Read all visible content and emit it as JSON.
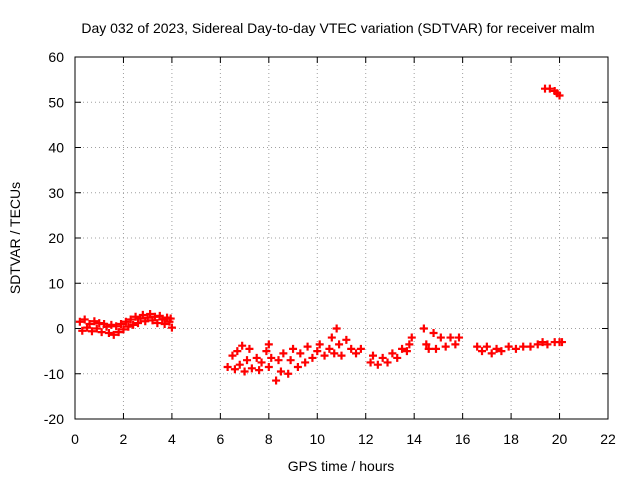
{
  "chart_data": {
    "type": "scatter",
    "title": "Day 032 of 2023, Sidereal Day-to-day VTEC variation (SDTVAR) for receiver malm",
    "xlabel": "GPS time / hours",
    "ylabel": "SDTVAR / TECUs",
    "xlim": [
      0,
      22
    ],
    "ylim": [
      -20,
      60
    ],
    "xticks": [
      "0",
      "2",
      "4",
      "6",
      "8",
      "10",
      "12",
      "14",
      "16",
      "18",
      "20",
      "22"
    ],
    "yticks": [
      "-20",
      "-10",
      "0",
      "10",
      "20",
      "30",
      "40",
      "50",
      "60"
    ],
    "grid": true,
    "marker": "+",
    "color": "#ff0000",
    "series": [
      {
        "name": "SDTVAR",
        "points": [
          [
            0.2,
            1.5
          ],
          [
            0.3,
            -0.5
          ],
          [
            0.4,
            2.0
          ],
          [
            0.5,
            0.2
          ],
          [
            0.6,
            1.0
          ],
          [
            0.7,
            -0.6
          ],
          [
            0.8,
            1.6
          ],
          [
            0.9,
            0.0
          ],
          [
            1.0,
            1.2
          ],
          [
            1.1,
            -0.8
          ],
          [
            1.2,
            1.0
          ],
          [
            1.3,
            0.4
          ],
          [
            1.4,
            -1.0
          ],
          [
            1.5,
            0.8
          ],
          [
            1.6,
            -1.4
          ],
          [
            1.7,
            0.5
          ],
          [
            1.8,
            -0.8
          ],
          [
            1.9,
            1.0
          ],
          [
            2.0,
            -0.2
          ],
          [
            2.1,
            1.5
          ],
          [
            2.2,
            0.4
          ],
          [
            2.3,
            2.0
          ],
          [
            2.4,
            0.8
          ],
          [
            2.5,
            2.6
          ],
          [
            2.6,
            1.2
          ],
          [
            2.7,
            2.2
          ],
          [
            2.8,
            3.0
          ],
          [
            2.9,
            1.6
          ],
          [
            3.0,
            2.4
          ],
          [
            3.1,
            3.2
          ],
          [
            3.2,
            1.8
          ],
          [
            3.3,
            2.6
          ],
          [
            3.4,
            1.2
          ],
          [
            3.5,
            2.8
          ],
          [
            3.6,
            2.0
          ],
          [
            3.7,
            1.0
          ],
          [
            3.8,
            2.4
          ],
          [
            3.9,
            1.5
          ],
          [
            4.0,
            0.2
          ],
          [
            3.95,
            2.2
          ],
          [
            6.3,
            -8.5
          ],
          [
            6.5,
            -6.0
          ],
          [
            6.6,
            -9.0
          ],
          [
            6.7,
            -5.0
          ],
          [
            6.8,
            -8.0
          ],
          [
            6.9,
            -3.8
          ],
          [
            7.0,
            -9.5
          ],
          [
            7.1,
            -7.0
          ],
          [
            7.2,
            -4.5
          ],
          [
            7.3,
            -8.8
          ],
          [
            7.5,
            -6.5
          ],
          [
            7.6,
            -9.2
          ],
          [
            7.7,
            -7.5
          ],
          [
            7.9,
            -5.0
          ],
          [
            8.0,
            -8.5
          ],
          [
            8.1,
            -6.5
          ],
          [
            8.0,
            -3.5
          ],
          [
            8.3,
            -11.5
          ],
          [
            8.4,
            -7.0
          ],
          [
            8.5,
            -9.5
          ],
          [
            8.6,
            -5.5
          ],
          [
            8.8,
            -10.0
          ],
          [
            8.9,
            -7.0
          ],
          [
            9.0,
            -4.5
          ],
          [
            9.2,
            -8.5
          ],
          [
            9.3,
            -5.5
          ],
          [
            9.5,
            -7.5
          ],
          [
            9.6,
            -4.0
          ],
          [
            9.8,
            -6.5
          ],
          [
            10.0,
            -5.0
          ],
          [
            10.1,
            -3.5
          ],
          [
            10.3,
            -6.0
          ],
          [
            10.5,
            -4.5
          ],
          [
            10.6,
            -2.0
          ],
          [
            10.7,
            -5.5
          ],
          [
            10.8,
            0.0
          ],
          [
            10.9,
            -3.5
          ],
          [
            11.0,
            -6.0
          ],
          [
            11.2,
            -2.5
          ],
          [
            11.4,
            -4.5
          ],
          [
            11.6,
            -5.5
          ],
          [
            11.8,
            -4.5
          ],
          [
            12.2,
            -7.5
          ],
          [
            12.3,
            -6.0
          ],
          [
            12.5,
            -8.0
          ],
          [
            12.7,
            -6.5
          ],
          [
            12.9,
            -7.5
          ],
          [
            13.1,
            -5.5
          ],
          [
            13.3,
            -6.5
          ],
          [
            13.5,
            -4.5
          ],
          [
            13.7,
            -5.0
          ],
          [
            13.9,
            -2.0
          ],
          [
            13.8,
            -3.5
          ],
          [
            14.4,
            0.0
          ],
          [
            14.5,
            -3.5
          ],
          [
            14.6,
            -4.5
          ],
          [
            14.8,
            -1.0
          ],
          [
            14.9,
            -4.5
          ],
          [
            15.1,
            -2.0
          ],
          [
            15.3,
            -4.0
          ],
          [
            15.5,
            -2.0
          ],
          [
            15.7,
            -3.5
          ],
          [
            15.85,
            -2.0
          ],
          [
            16.6,
            -4.0
          ],
          [
            16.8,
            -5.0
          ],
          [
            17.0,
            -4.0
          ],
          [
            17.2,
            -5.5
          ],
          [
            17.4,
            -4.5
          ],
          [
            17.6,
            -5.0
          ],
          [
            17.9,
            -4.0
          ],
          [
            18.2,
            -4.5
          ],
          [
            18.5,
            -4.0
          ],
          [
            18.8,
            -4.0
          ],
          [
            19.1,
            -3.5
          ],
          [
            19.3,
            -3.0
          ],
          [
            19.5,
            -3.5
          ],
          [
            19.8,
            -3.0
          ],
          [
            20.0,
            -3.0
          ],
          [
            20.1,
            -3.0
          ],
          [
            19.4,
            53.0
          ],
          [
            19.6,
            53.0
          ],
          [
            19.8,
            52.5
          ],
          [
            19.9,
            52.0
          ],
          [
            20.0,
            51.5
          ]
        ]
      }
    ]
  }
}
